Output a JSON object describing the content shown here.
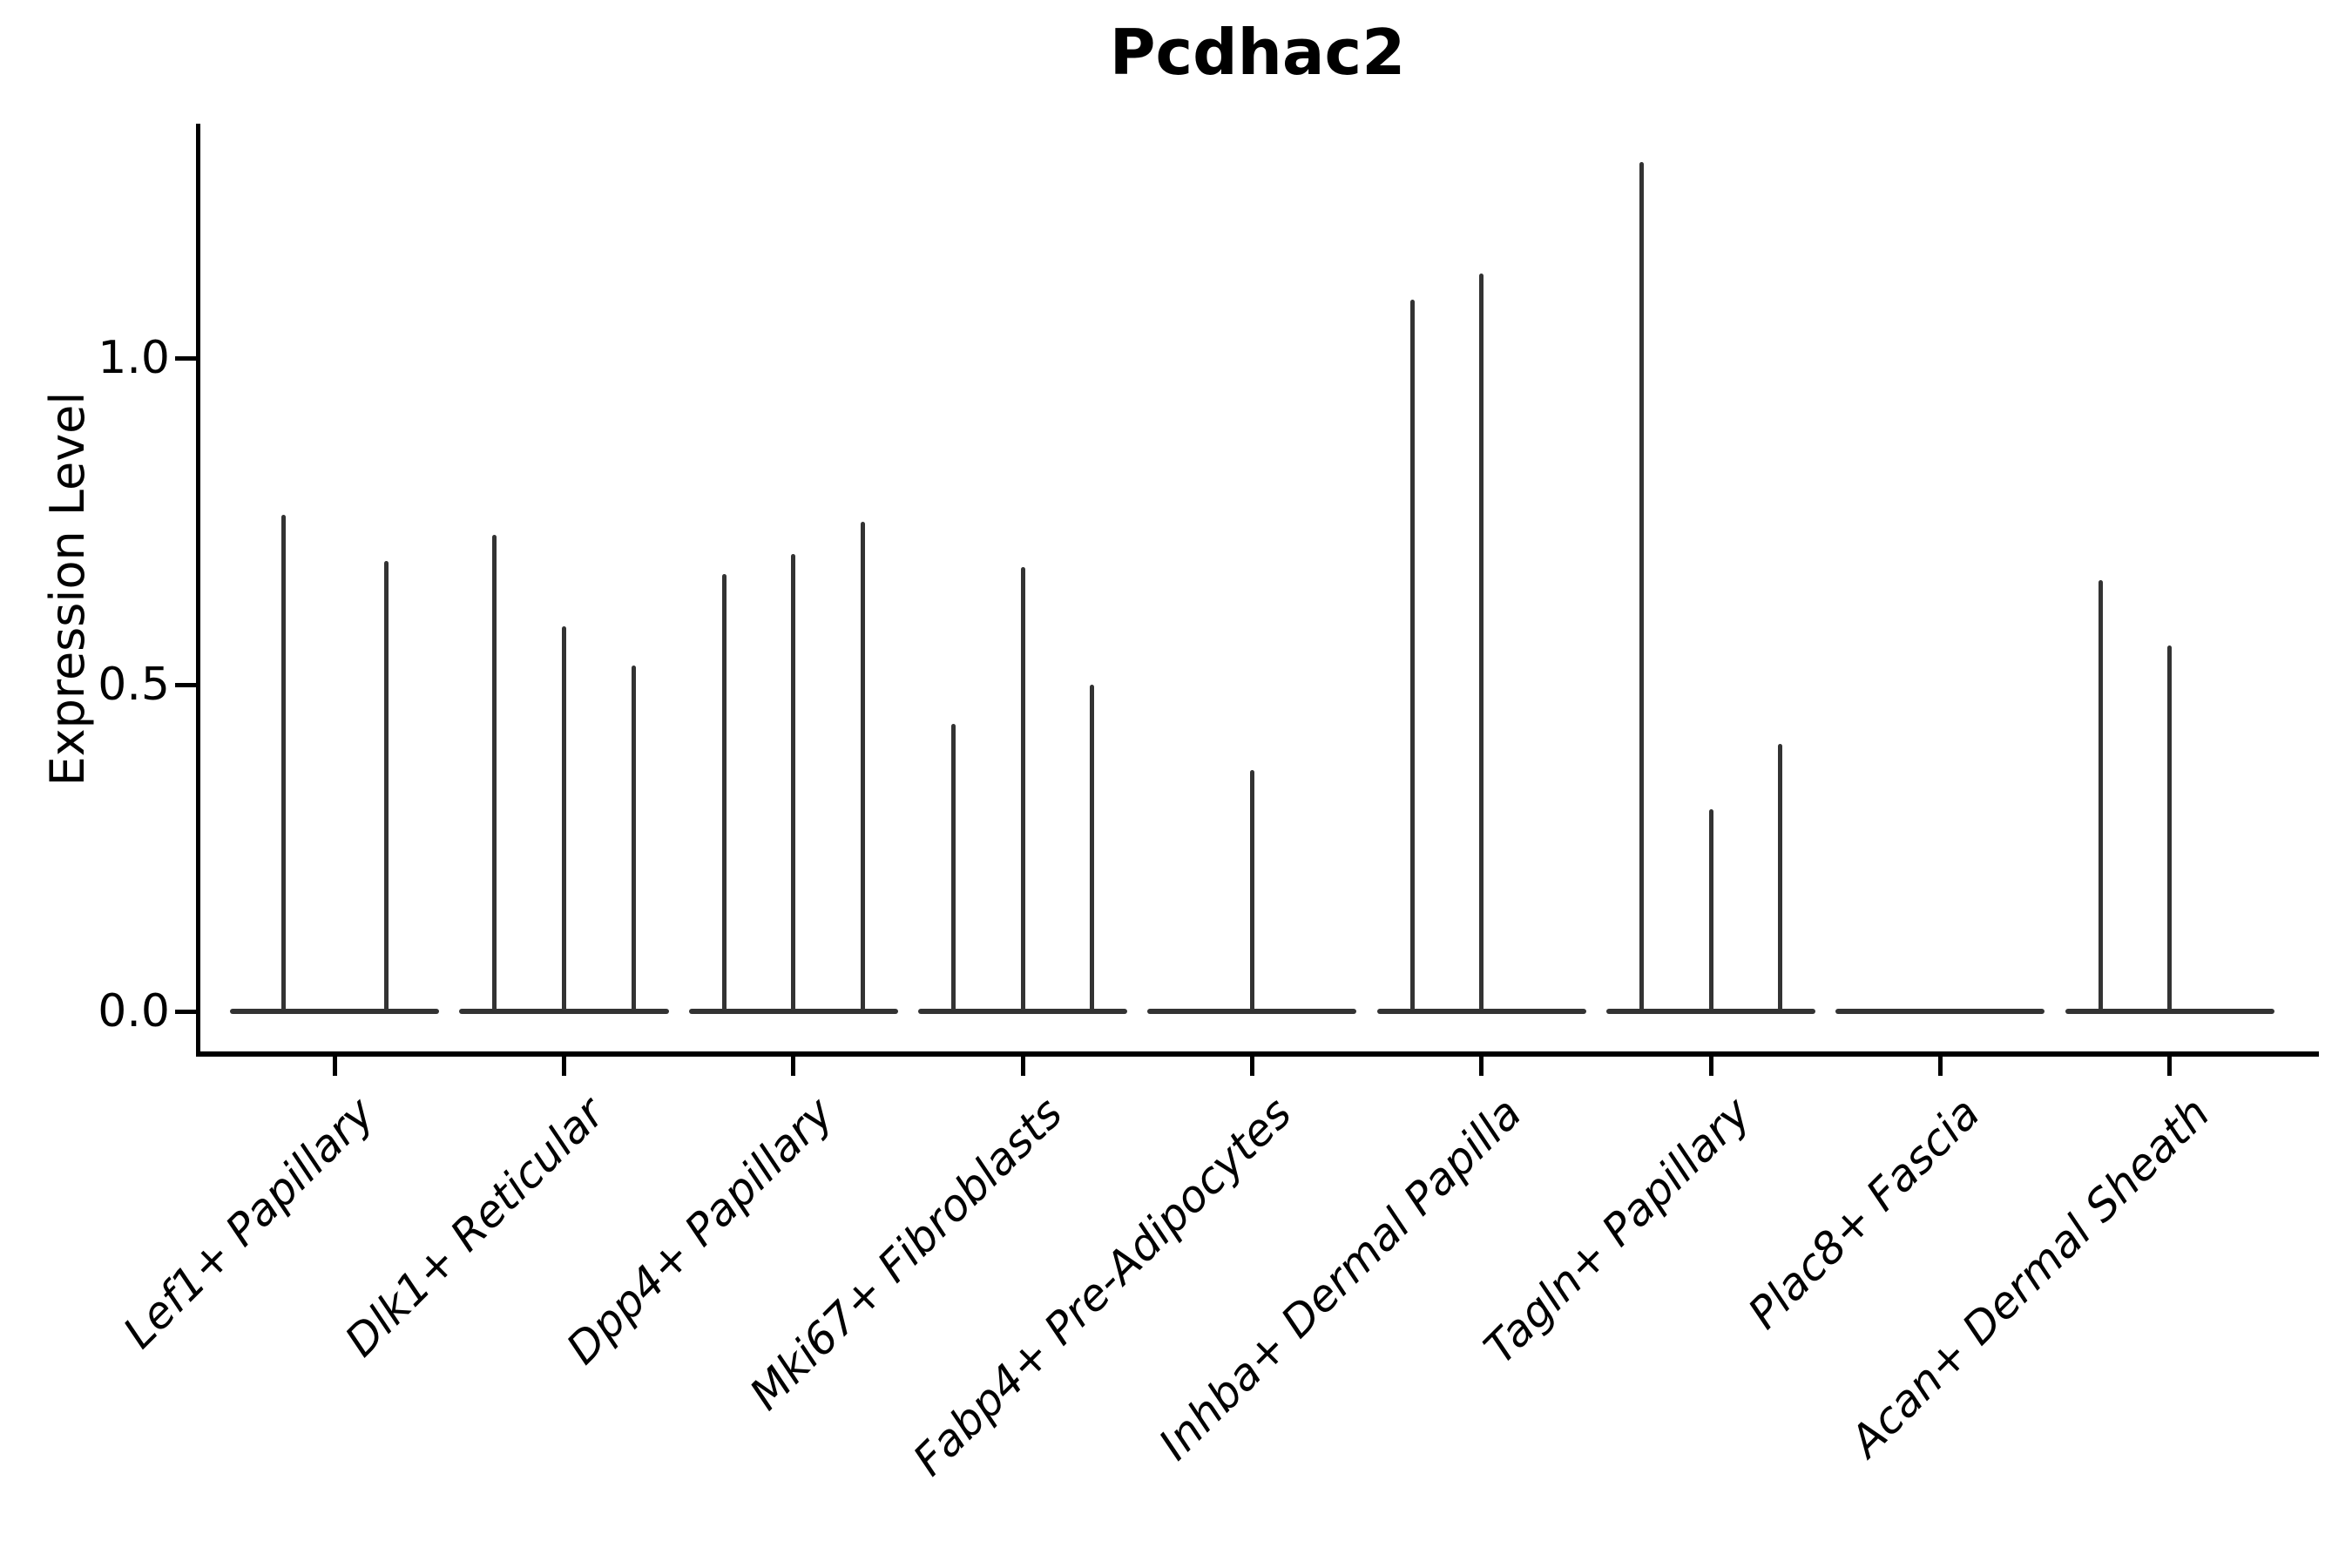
{
  "title": "Pcdhac2",
  "y_axis": {
    "label": "Expression Level",
    "tick_labels": [
      "0.0",
      "0.5",
      "1.0"
    ]
  },
  "x_axis": {
    "tick_labels": [
      "Lef1+ Papillary",
      "Dlk1+ Reticular",
      "Dpp4+ Papillary",
      "Mki67+ Fibroblasts",
      "Fabp4+ Pre-Adipocytes",
      "Inhba+ Dermal Papilla",
      "Tagln+ Papillary",
      "Plac8+ Fascia",
      "Acan+ Dermal Sheath"
    ]
  },
  "chart_data": {
    "type": "violin",
    "title": "Pcdhac2",
    "xlabel": "",
    "ylabel": "Expression Level",
    "yticks": [
      0.0,
      0.5,
      1.0
    ],
    "ytick_labels": [
      "0.0",
      "0.5",
      "1.0"
    ],
    "ylim": [
      -0.06,
      1.36
    ],
    "grid": false,
    "legend": "none",
    "label_rotation": 45,
    "categories": [
      "Lef1+ Papillary",
      "Dlk1+ Reticular",
      "Dpp4+ Papillary",
      "Mki67+ Fibroblasts",
      "Fabp4+ Pre-Adipocytes",
      "Inhba+ Dermal Papilla",
      "Tagln+ Papillary",
      "Plac8+ Fascia",
      "Acan+ Dermal Sheath"
    ],
    "violin_base_half_width": 0.456,
    "groups": [
      {
        "category": "Lef1+ Papillary",
        "spikes": [
          {
            "offset": -0.222,
            "max": 0.76
          },
          {
            "offset": 0.224,
            "max": 0.69
          }
        ]
      },
      {
        "category": "Dlk1+ Reticular",
        "spikes": [
          {
            "offset": -0.302,
            "max": 0.73
          },
          {
            "offset": 0.0,
            "max": 0.59
          },
          {
            "offset": 0.302,
            "max": 0.53
          }
        ]
      },
      {
        "category": "Dpp4+ Papillary",
        "spikes": [
          {
            "offset": -0.302,
            "max": 0.67
          },
          {
            "offset": 0.0,
            "max": 0.7
          },
          {
            "offset": 0.302,
            "max": 0.75
          }
        ]
      },
      {
        "category": "Mki67+ Fibroblasts",
        "spikes": [
          {
            "offset": -0.302,
            "max": 0.44
          },
          {
            "offset": 0.0,
            "max": 0.68
          },
          {
            "offset": 0.302,
            "max": 0.5
          }
        ]
      },
      {
        "category": "Fabp4+ Pre-Adipocytes",
        "spikes": [
          {
            "offset": 0.0,
            "max": 0.37
          }
        ]
      },
      {
        "category": "Inhba+ Dermal Papilla",
        "spikes": [
          {
            "offset": -0.302,
            "max": 1.09
          },
          {
            "offset": 0.0,
            "max": 1.13
          }
        ]
      },
      {
        "category": "Tagln+ Papillary",
        "spikes": [
          {
            "offset": -0.302,
            "max": 1.3
          },
          {
            "offset": 0.0,
            "max": 0.31
          },
          {
            "offset": 0.302,
            "max": 0.41
          }
        ]
      },
      {
        "category": "Plac8+ Fascia",
        "spikes": []
      },
      {
        "category": "Acan+ Dermal Sheath",
        "spikes": [
          {
            "offset": -0.302,
            "max": 0.66
          },
          {
            "offset": 0.0,
            "max": 0.56
          }
        ]
      }
    ],
    "colors": {
      "violin": "#333333",
      "axis": "#000000",
      "background": "#ffffff"
    }
  }
}
